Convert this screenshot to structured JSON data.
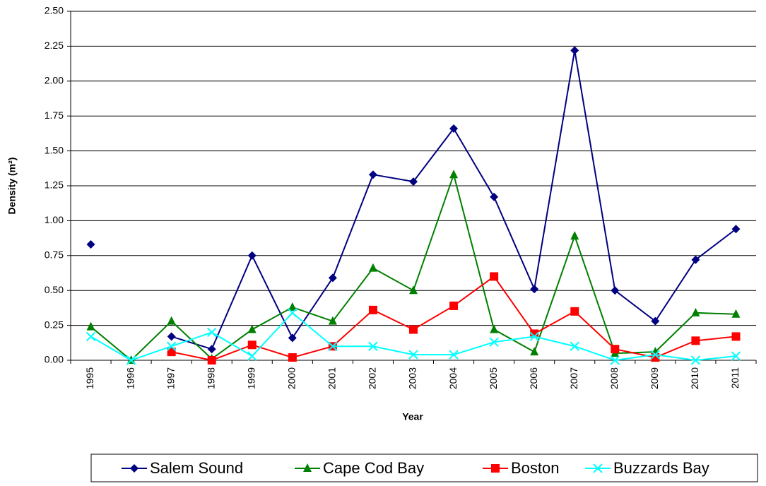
{
  "chart_data": {
    "type": "line",
    "x_label": "Year",
    "y_label": "Density (m²)",
    "categories": [
      "1995",
      "1996",
      "1997",
      "1998",
      "1999",
      "2000",
      "2001",
      "2002",
      "2003",
      "2004",
      "2005",
      "2006",
      "2007",
      "2008",
      "2009",
      "2010",
      "2011"
    ],
    "ylim": [
      0,
      2.5
    ],
    "yticks": [
      {
        "value": 0,
        "label": "0.00"
      },
      {
        "value": 0.25,
        "label": "0.25"
      },
      {
        "value": 0.5,
        "label": "0.50"
      },
      {
        "value": 0.75,
        "label": "0.75"
      },
      {
        "value": 1,
        "label": "1.00"
      },
      {
        "value": 1.25,
        "label": "1.25"
      },
      {
        "value": 1.5,
        "label": "1.50"
      },
      {
        "value": 1.75,
        "label": "1.75"
      },
      {
        "value": 2,
        "label": "2.00"
      },
      {
        "value": 2.25,
        "label": "2.25"
      },
      {
        "value": 2.5,
        "label": "2.50"
      }
    ],
    "grid": true,
    "legend": "bottom",
    "series": [
      {
        "name": "Salem Sound",
        "color": "#000080",
        "marker": "diamond",
        "values": [
          0.83,
          null,
          0.17,
          0.08,
          0.75,
          0.16,
          0.59,
          1.33,
          1.28,
          1.66,
          1.17,
          0.51,
          2.22,
          0.5,
          0.28,
          0.72,
          0.94
        ]
      },
      {
        "name": "Cape Cod Bay",
        "color": "#008000",
        "marker": "triangle",
        "values": [
          0.24,
          0,
          0.28,
          0.01,
          0.22,
          0.38,
          0.28,
          0.66,
          0.5,
          1.33,
          0.22,
          0.06,
          0.89,
          0.05,
          0.06,
          0.34,
          0.33
        ]
      },
      {
        "name": "Boston",
        "color": "#ff0000",
        "marker": "square",
        "values": [
          null,
          null,
          0.06,
          0,
          0.11,
          0.02,
          0.1,
          0.36,
          0.22,
          0.39,
          0.6,
          0.19,
          0.35,
          0.08,
          0.02,
          0.14,
          0.17
        ]
      },
      {
        "name": "Buzzards Bay",
        "color": "#00ffff",
        "marker": "x",
        "values": [
          0.17,
          0,
          0.1,
          0.2,
          0.03,
          0.34,
          0.1,
          0.1,
          0.04,
          0.04,
          0.13,
          0.17,
          0.1,
          0,
          0.04,
          0,
          0.03
        ]
      }
    ]
  }
}
